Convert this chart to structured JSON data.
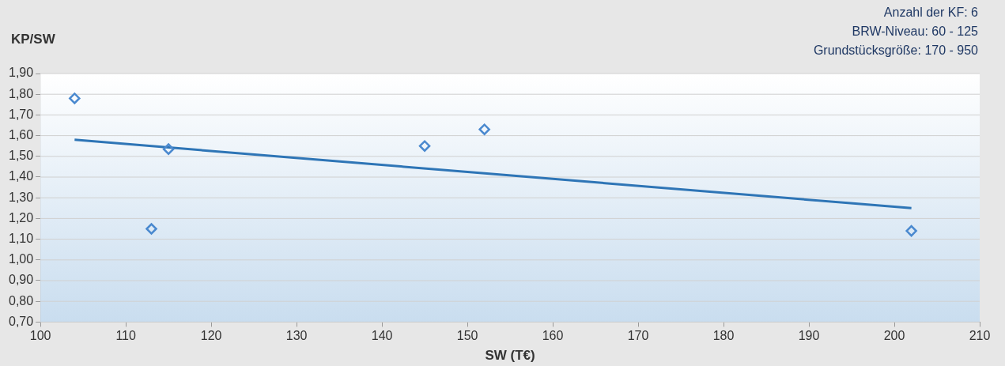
{
  "chart_data": {
    "type": "scatter",
    "xlabel": "SW (T€)",
    "ylabel": "KP/SW",
    "annotations": [
      "Anzahl der KF: 6",
      "BRW-Niveau: 60 - 125",
      "Grundstücksgröße: 170 - 950"
    ],
    "series": [
      {
        "color": "#4a89cf",
        "marker": "diamond",
        "x": [
          104,
          113,
          115,
          145,
          152,
          202
        ],
        "values": [
          1.78,
          1.15,
          1.535,
          1.55,
          1.63,
          1.14
        ]
      },
      {
        "type": "line",
        "marker": "none",
        "color": "#2e75b6",
        "x": [
          104,
          202
        ],
        "values": [
          1.58,
          1.25
        ]
      }
    ],
    "xlim": [
      100,
      210
    ],
    "xticks": [
      100,
      110,
      120,
      130,
      140,
      150,
      160,
      170,
      180,
      190,
      200,
      210
    ],
    "ylim": [
      0.7,
      1.9
    ],
    "yticks": [
      {
        "value": 0.7,
        "label": "0,70"
      },
      {
        "value": 0.8,
        "label": "0,80"
      },
      {
        "value": 0.9,
        "label": "0,90"
      },
      {
        "value": 1.0,
        "label": "1,00"
      },
      {
        "value": 1.1,
        "label": "1,10"
      },
      {
        "value": 1.2,
        "label": "1,20"
      },
      {
        "value": 1.3,
        "label": "1,30"
      },
      {
        "value": 1.4,
        "label": "1,40"
      },
      {
        "value": 1.5,
        "label": "1,50"
      },
      {
        "value": 1.6,
        "label": "1,60"
      },
      {
        "value": 1.7,
        "label": "1,70"
      },
      {
        "value": 1.8,
        "label": "1,80"
      },
      {
        "value": 1.9,
        "label": "1,90"
      }
    ],
    "grid": "y",
    "legend": false
  }
}
